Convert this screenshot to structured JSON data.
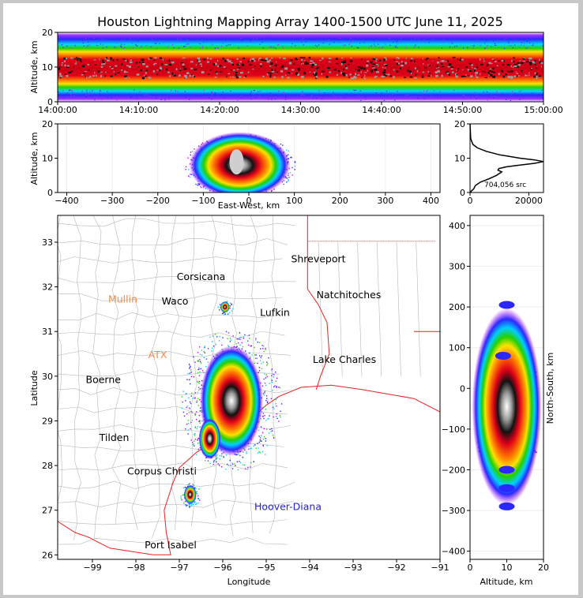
{
  "title": "Houston Lightning Mapping Array 1400-1500 UTC June 11, 2025",
  "colors": {
    "bg": "#ffffff",
    "border": "#000000",
    "coast": "#e8211f",
    "county": "#b8b8b8",
    "hoover": "#2222dd",
    "mullin": "#ef8a4e",
    "ah": "#f5a623"
  },
  "chart_data": [
    {
      "id": "time-altitude",
      "type": "heatmap",
      "ylabel": "Altitude, km",
      "ylim": [
        0,
        20
      ],
      "yticks": [
        "0",
        "10",
        "20"
      ],
      "xlim": [
        "14:00:00",
        "15:00:00"
      ],
      "xticks": [
        "14:00:00",
        "14:10:00",
        "14:20:00",
        "14:30:00",
        "14:40:00",
        "14:50:00",
        "15:00:00"
      ],
      "density_peak_altitude_km": 10
    },
    {
      "id": "ew-altitude",
      "type": "heatmap",
      "xlabel": "East-West, km",
      "ylabel": "Altitude, km",
      "xlim": [
        -420,
        420
      ],
      "ylim": [
        0,
        20
      ],
      "xticks": [
        "−400",
        "−300",
        "−200",
        "−100",
        "0",
        "100",
        "200",
        "300",
        "400"
      ],
      "yticks": [
        "0",
        "10",
        "20"
      ],
      "cluster_center_x_km": -20,
      "cluster_center_alt_km": 8
    },
    {
      "id": "altitude-histogram",
      "type": "line",
      "xlim": [
        0,
        25000
      ],
      "ylim": [
        0,
        20
      ],
      "xticks": [
        "0",
        "20000"
      ],
      "yticks": [
        "0",
        "10",
        "20"
      ],
      "annotation": "704,056 src",
      "altitude_km": [
        0,
        0.5,
        1,
        2,
        3,
        4,
        5,
        6,
        6.5,
        7,
        7.5,
        8,
        8.5,
        9,
        9.5,
        10,
        11,
        12,
        13,
        14,
        15,
        16,
        17,
        18,
        19,
        20
      ],
      "count": [
        200,
        500,
        1200,
        1800,
        3500,
        6500,
        9000,
        10800,
        9500,
        9800,
        12500,
        17000,
        22000,
        25000,
        22000,
        17000,
        10000,
        5500,
        2500,
        1000,
        500,
        200,
        150,
        100,
        50,
        0
      ]
    },
    {
      "id": "plan-view",
      "type": "scatter",
      "xlabel": "Longitude",
      "ylabel": "Latitude",
      "xlim": [
        -99.8,
        -91
      ],
      "ylim": [
        25.9,
        33.6
      ],
      "xticks": [
        "−99",
        "−98",
        "−97",
        "−96",
        "−95",
        "−94",
        "−93",
        "−92",
        "−91"
      ],
      "yticks": [
        "26",
        "27",
        "28",
        "29",
        "30",
        "31",
        "32",
        "33"
      ],
      "cities": [
        {
          "name": "Shreveport",
          "lon": -93.8,
          "lat": 32.55
        },
        {
          "name": "Corsicana",
          "lon": -96.5,
          "lat": 32.15
        },
        {
          "name": "Natchitoches",
          "lon": -93.1,
          "lat": 31.75
        },
        {
          "name": "Waco",
          "lon": -97.1,
          "lat": 31.6
        },
        {
          "name": "Lufkin",
          "lon": -94.8,
          "lat": 31.35
        },
        {
          "name": "Lake Charles",
          "lon": -93.2,
          "lat": 30.3
        },
        {
          "name": "Boerne",
          "lon": -98.75,
          "lat": 29.85
        },
        {
          "name": "Tilden",
          "lon": -98.5,
          "lat": 28.55
        },
        {
          "name": "Corpus Christi",
          "lon": -97.4,
          "lat": 27.8
        },
        {
          "name": "Port Isabel",
          "lon": -97.2,
          "lat": 26.15
        }
      ],
      "platforms": [
        {
          "name": "Mullin",
          "lon": -98.3,
          "lat": 31.65
        },
        {
          "name": "ATX",
          "lon": -97.5,
          "lat": 30.4
        },
        {
          "name": "Hoover-Diana",
          "lon": -94.5,
          "lat": 27.0
        }
      ]
    },
    {
      "id": "altitude-ns",
      "type": "heatmap",
      "xlabel": "Altitude, km",
      "ylabel": "North-South, km",
      "xlim": [
        0,
        20
      ],
      "ylim": [
        -420,
        425
      ],
      "xticks": [
        "0",
        "10",
        "20"
      ],
      "yticks": [
        "−400",
        "−300",
        "−200",
        "−100",
        "0",
        "100",
        "200",
        "300",
        "400"
      ]
    }
  ]
}
